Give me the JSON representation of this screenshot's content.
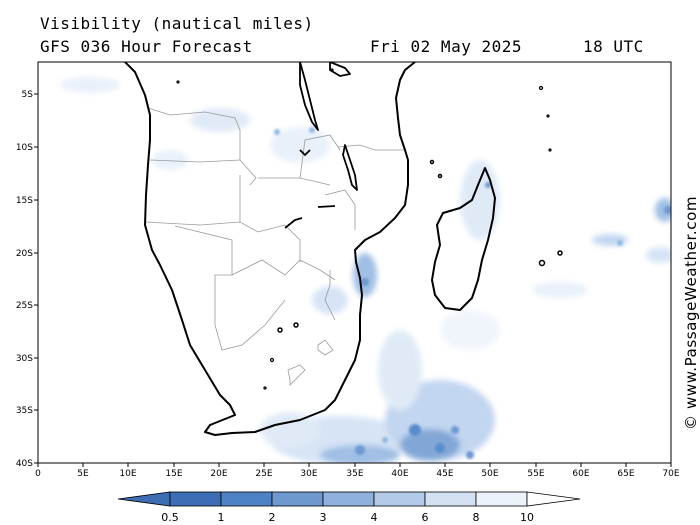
{
  "header": {
    "title": "Visibility (nautical miles)",
    "model_label": "GFS 036 Hour Forecast",
    "date": "Fri 02 May 2025",
    "time": "18 UTC"
  },
  "credit": "© www.PassageWeather.com",
  "axes": {
    "lat_labels": [
      "5S",
      "10S",
      "15S",
      "20S",
      "25S",
      "30S",
      "35S",
      "40S"
    ],
    "lon_labels": [
      "0",
      "5E",
      "10E",
      "15E",
      "20E",
      "25E",
      "30E",
      "35E",
      "40E",
      "45E",
      "50E",
      "55E",
      "60E",
      "65E",
      "70E"
    ]
  },
  "legend": {
    "ticks": [
      "0.5",
      "1",
      "2",
      "3",
      "4",
      "6",
      "8",
      "10"
    ],
    "colors": [
      "#3d6eb5",
      "#4f82c4",
      "#6d98d0",
      "#8fb1dc",
      "#b3cbe8",
      "#d3e1f2",
      "#ecf2fa",
      "#ffffff"
    ]
  },
  "colors": {
    "fog_dark": "#5a8ccc",
    "fog_mid": "#8fb4e0",
    "fog_light": "#cfe0f4",
    "coast": "#000000",
    "border": "#9a9a9a"
  }
}
